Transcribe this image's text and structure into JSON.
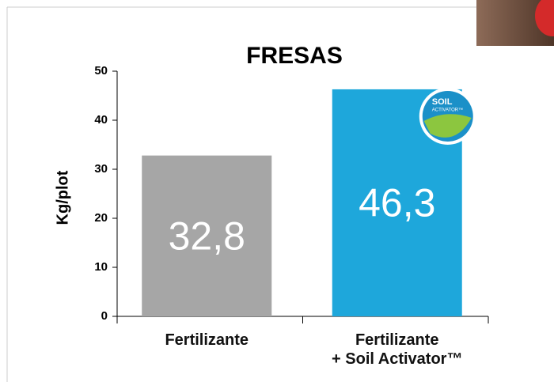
{
  "chart_data": {
    "type": "bar",
    "title": "FRESAS",
    "y_label": "Kg/plot",
    "categories": [
      "Fertilizante",
      "Fertilizante\n+ Soil Activator™"
    ],
    "values": [
      32.8,
      46.3
    ],
    "value_labels": [
      "32,8",
      "46,3"
    ],
    "colors": [
      "#a6a6a6",
      "#1ea7db"
    ],
    "ylim": [
      0,
      50
    ],
    "yticks": [
      0,
      10,
      20,
      30,
      40,
      50
    ],
    "grid": false,
    "badge": {
      "line1": "SOIL",
      "line2": "ACTIVATOR™"
    }
  }
}
